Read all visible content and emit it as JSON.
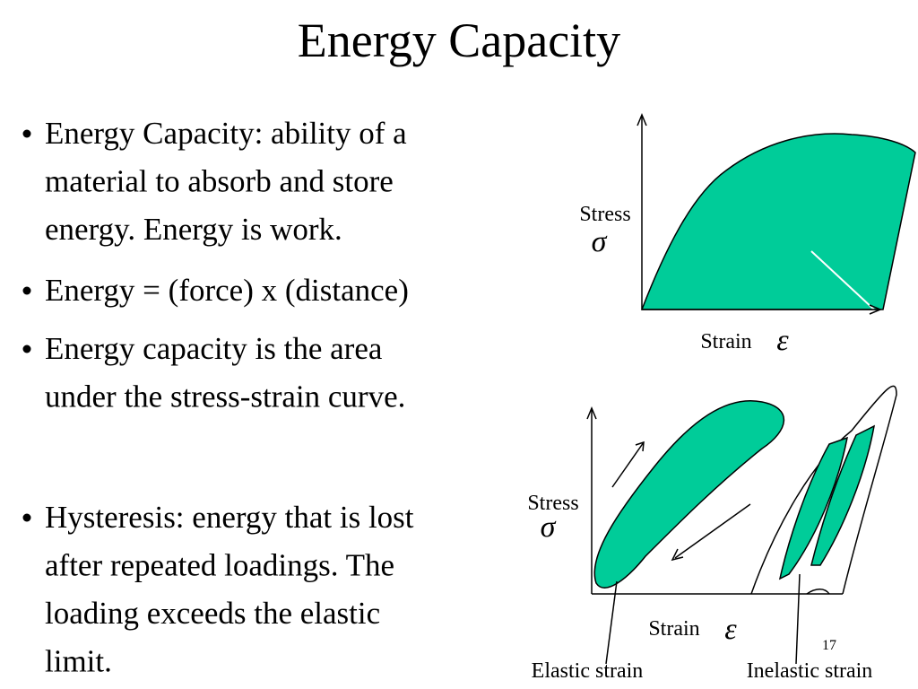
{
  "title": "Energy Capacity",
  "bullets": [
    {
      "lines": [
        "Energy Capacity: ability of a",
        "material to absorb and store",
        "energy. Energy is work."
      ]
    },
    {
      "lines": [
        "Energy = (force) x (distance)"
      ]
    },
    {
      "lines": [
        "Energy capacity is the area",
        "under the stress-strain curve."
      ]
    },
    {
      "lines": [
        "Hysteresis: energy that is lost",
        "after repeated loadings. The",
        "loading exceeds the elastic",
        "limit."
      ]
    }
  ],
  "diagram_top": {
    "y_label": "Stress",
    "y_symbol": "σ",
    "x_label": "Strain",
    "x_symbol": "ε"
  },
  "diagram_bottom": {
    "y_label": "Stress",
    "y_symbol": "σ",
    "x_label": "Strain",
    "x_symbol": "ε",
    "elastic_label": "Elastic strain",
    "inelastic_label": "Inelastic strain"
  },
  "page_number": "17"
}
